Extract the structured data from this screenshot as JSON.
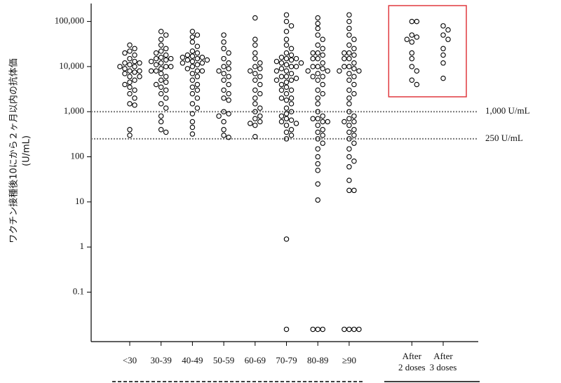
{
  "chart_data": {
    "type": "swarm",
    "ylabel": [
      "ワクチン接種後10にから２ヶ月以内の抗体価",
      "(U/mL)"
    ],
    "log_scale": true,
    "ylim": [
      0.008,
      250000
    ],
    "yticks": [
      0.1,
      1,
      10,
      100,
      {
        "value": 1000,
        "label": "1,000"
      },
      {
        "value": 10000,
        "label": "10,000"
      },
      {
        "value": 100000,
        "label": "100,000"
      }
    ],
    "marker_color": "#000000",
    "highlight_color": "#e0393e",
    "reference_lines": [
      {
        "value": 1000,
        "label": "1,000 U/mL"
      },
      {
        "value": 250,
        "label": "250 U/mL"
      }
    ],
    "categories": [
      "<30",
      "30-39",
      "40-49",
      "50-59",
      "60-69",
      "70-79",
      "80-89",
      "≥90",
      null,
      "After\n2 doses",
      "After\n3 doses"
    ],
    "highlight_categories": [
      9,
      10
    ],
    "values": [
      [
        30000,
        25000,
        22000,
        20000,
        18000,
        15000,
        13000,
        12000,
        11000,
        10000,
        9000,
        8000,
        7500,
        7000,
        6000,
        5000,
        4500,
        4000,
        3500,
        3000,
        2500,
        2000,
        1500,
        1400,
        400,
        300,
        10000,
        8000,
        6000,
        12000
      ],
      [
        60000,
        50000,
        40000,
        30000,
        25000,
        22000,
        20000,
        18000,
        16000,
        15000,
        14000,
        13000,
        12000,
        11000,
        10000,
        9000,
        8000,
        7000,
        6000,
        5000,
        4500,
        4000,
        3500,
        3000,
        2500,
        2000,
        1500,
        1200,
        800,
        600,
        400,
        350,
        15000,
        10000,
        8000
      ],
      [
        60000,
        50000,
        45000,
        35000,
        28000,
        22000,
        20000,
        18000,
        17000,
        16000,
        15000,
        14000,
        13000,
        12000,
        11000,
        10000,
        9000,
        8000,
        7000,
        6000,
        5000,
        4000,
        3500,
        3000,
        2500,
        2000,
        1500,
        1200,
        900,
        600,
        450,
        320,
        16000,
        14000,
        12000,
        8000
      ],
      [
        50000,
        35000,
        25000,
        20000,
        15000,
        12000,
        10000,
        9000,
        8000,
        7000,
        6000,
        5000,
        4000,
        3000,
        2500,
        2000,
        1800,
        1000,
        900,
        800,
        600,
        400,
        300,
        270
      ],
      [
        120000,
        40000,
        30000,
        20000,
        15000,
        12000,
        10000,
        9000,
        8000,
        7000,
        6000,
        5000,
        4000,
        3000,
        2500,
        2000,
        1500,
        1200,
        1000,
        800,
        700,
        600,
        550,
        500,
        280
      ],
      [
        140000,
        100000,
        80000,
        60000,
        40000,
        30000,
        25000,
        20000,
        18000,
        16000,
        15000,
        14000,
        13000,
        12000,
        11000,
        10000,
        9000,
        8000,
        7000,
        6000,
        5500,
        5000,
        4500,
        4000,
        3500,
        3000,
        2500,
        2000,
        1800,
        1500,
        1200,
        1000,
        900,
        800,
        700,
        650,
        600,
        550,
        500,
        400,
        350,
        300,
        250,
        1.5,
        0.015,
        15000,
        12000,
        10000,
        8000,
        6000,
        5000,
        3000,
        2000
      ],
      [
        120000,
        90000,
        70000,
        50000,
        40000,
        30000,
        25000,
        20000,
        18000,
        15000,
        12000,
        10000,
        9000,
        8000,
        7000,
        6000,
        5000,
        4000,
        3000,
        2500,
        2000,
        1500,
        1000,
        800,
        700,
        600,
        500,
        400,
        350,
        300,
        250,
        200,
        150,
        100,
        70,
        50,
        25,
        11,
        0.015,
        0.015,
        0.015,
        20000,
        15000,
        10000,
        8000,
        6000,
        700,
        600
      ],
      [
        140000,
        100000,
        70000,
        50000,
        40000,
        30000,
        25000,
        20000,
        18000,
        15000,
        12000,
        10000,
        9000,
        8000,
        7000,
        6000,
        5000,
        4000,
        3000,
        2500,
        2000,
        1500,
        1000,
        800,
        700,
        600,
        500,
        400,
        350,
        300,
        250,
        200,
        150,
        100,
        80,
        60,
        30,
        18,
        18,
        0.015,
        0.015,
        0.015,
        0.015,
        20000,
        15000,
        10000,
        8000,
        600
      ],
      [],
      [
        100000,
        100000,
        50000,
        45000,
        40000,
        35000,
        20000,
        15000,
        10000,
        8000,
        5000,
        4000
      ],
      [
        80000,
        65000,
        50000,
        40000,
        25000,
        18000,
        12000,
        5500
      ]
    ]
  }
}
